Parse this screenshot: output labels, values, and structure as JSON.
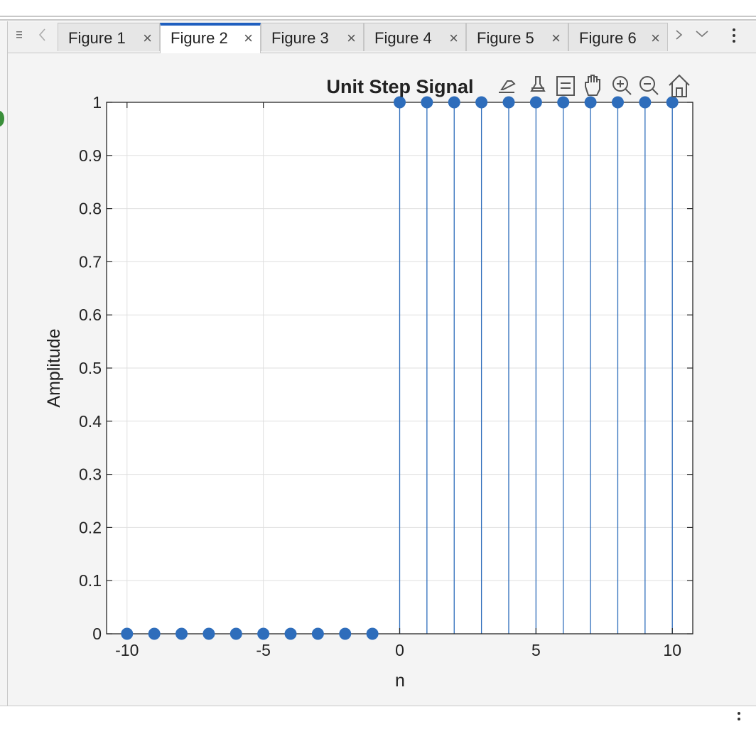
{
  "tabs": [
    {
      "label": "Figure 1",
      "active": false
    },
    {
      "label": "Figure 2",
      "active": true
    },
    {
      "label": "Figure 3",
      "active": false
    },
    {
      "label": "Figure 4",
      "active": false
    },
    {
      "label": "Figure 5",
      "active": false
    },
    {
      "label": "Figure 6",
      "active": false
    }
  ],
  "tab_close_glyph": "×",
  "icons": {
    "menu": "menu-icon",
    "prev": "chevron-left-icon",
    "next": "chevron-right-icon",
    "down": "chevron-down-icon",
    "more": "more-vertical-icon"
  },
  "axes_toolbar": [
    "export-icon",
    "brush-icon",
    "data-tips-icon",
    "pan-icon",
    "zoom-in-icon",
    "zoom-out-icon",
    "home-icon"
  ],
  "colors": {
    "stem": "#2e6dbb",
    "marker": "#2e6dbb",
    "active_tab_accent": "#1f5fbf"
  },
  "chart_data": {
    "type": "stem",
    "title": "Unit Step Signal",
    "xlabel": "n",
    "ylabel": "Amplitude",
    "x": [
      -10,
      -9,
      -8,
      -7,
      -6,
      -5,
      -4,
      -3,
      -2,
      -1,
      0,
      1,
      2,
      3,
      4,
      5,
      6,
      7,
      8,
      9,
      10
    ],
    "y": [
      0,
      0,
      0,
      0,
      0,
      0,
      0,
      0,
      0,
      0,
      1,
      1,
      1,
      1,
      1,
      1,
      1,
      1,
      1,
      1,
      1
    ],
    "xlim": [
      -10.75,
      10.75
    ],
    "ylim": [
      0,
      1
    ],
    "xticks": [
      -10,
      -5,
      0,
      5,
      10
    ],
    "xtick_labels": [
      "-10",
      "-5",
      "0",
      "5",
      "10"
    ],
    "yticks": [
      0,
      0.1,
      0.2,
      0.3,
      0.4,
      0.5,
      0.6,
      0.7,
      0.8,
      0.9,
      1
    ],
    "ytick_labels": [
      "0",
      "0.1",
      "0.2",
      "0.3",
      "0.4",
      "0.5",
      "0.6",
      "0.7",
      "0.8",
      "0.9",
      "1"
    ],
    "grid": true,
    "marker": "filled-circle"
  }
}
